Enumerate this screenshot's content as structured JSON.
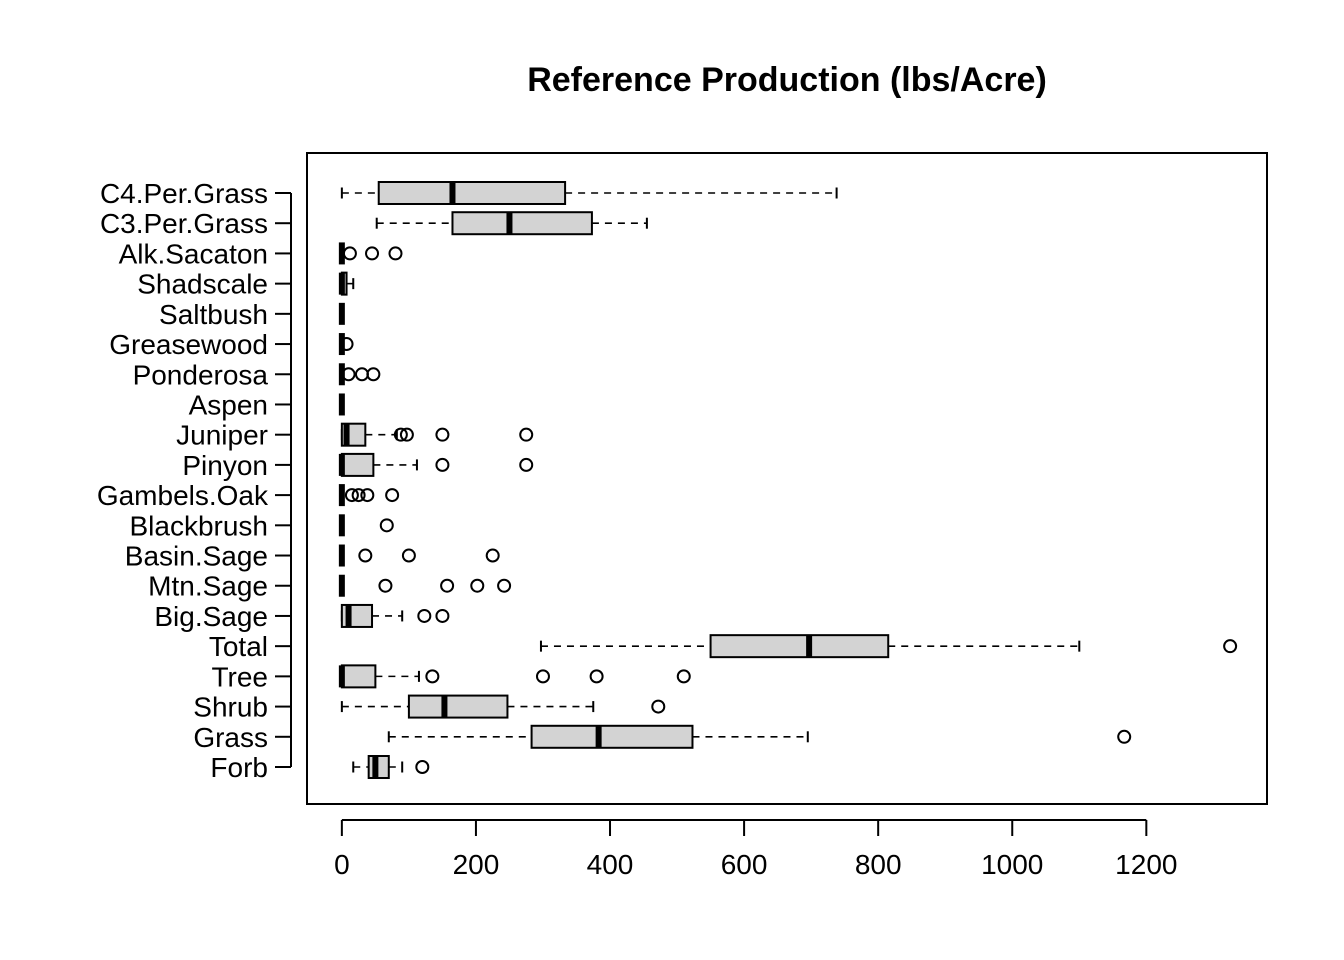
{
  "chart_data": {
    "type": "boxplot",
    "orientation": "horizontal",
    "title": "Reference Production (lbs/Acre)",
    "xlabel": "",
    "ylabel": "",
    "xlim": [
      -52,
      1380
    ],
    "xticks": [
      0,
      200,
      400,
      600,
      800,
      1000,
      1200
    ],
    "grid": false,
    "colors": {
      "box_fill": "#d3d3d3",
      "stroke": "#000000"
    },
    "categories": [
      "Forb",
      "Grass",
      "Shrub",
      "Tree",
      "Total",
      "Big.Sage",
      "Mtn.Sage",
      "Basin.Sage",
      "Blackbrush",
      "Gambels.Oak",
      "Pinyon",
      "Juniper",
      "Aspen",
      "Ponderosa",
      "Greasewood",
      "Saltbush",
      "Shadscale",
      "Alk.Sacaton",
      "C3.Per.Grass",
      "C4.Per.Grass"
    ],
    "series": [
      {
        "whisker_low": 17,
        "q1": 40,
        "median": 50,
        "q3": 70,
        "whisker_high": 90,
        "outliers": [
          120
        ]
      },
      {
        "whisker_low": 70,
        "q1": 283,
        "median": 383,
        "q3": 523,
        "whisker_high": 695,
        "outliers": [
          1167
        ]
      },
      {
        "whisker_low": 0,
        "q1": 100,
        "median": 153,
        "q3": 247,
        "whisker_high": 375,
        "outliers": [
          472
        ]
      },
      {
        "whisker_low": 0,
        "q1": 0,
        "median": 0,
        "q3": 50,
        "whisker_high": 115,
        "outliers": [
          135,
          300,
          380,
          510
        ]
      },
      {
        "whisker_low": 297,
        "q1": 550,
        "median": 697,
        "q3": 815,
        "whisker_high": 1100,
        "outliers": [
          1325
        ]
      },
      {
        "whisker_low": 0,
        "q1": 0,
        "median": 10,
        "q3": 45,
        "whisker_high": 90,
        "outliers": [
          123,
          150
        ]
      },
      {
        "whisker_low": 0,
        "q1": 0,
        "median": 0,
        "q3": 0,
        "whisker_high": 0,
        "outliers": [
          65,
          157,
          202,
          242
        ]
      },
      {
        "whisker_low": 0,
        "q1": 0,
        "median": 0,
        "q3": 0,
        "whisker_high": 0,
        "outliers": [
          35,
          100,
          225
        ]
      },
      {
        "whisker_low": 0,
        "q1": 0,
        "median": 0,
        "q3": 0,
        "whisker_high": 0,
        "outliers": [
          67
        ]
      },
      {
        "whisker_low": 0,
        "q1": 0,
        "median": 0,
        "q3": 0,
        "whisker_high": 0,
        "outliers": [
          15,
          25,
          38,
          75
        ]
      },
      {
        "whisker_low": 0,
        "q1": 0,
        "median": 0,
        "q3": 47,
        "whisker_high": 112,
        "outliers": [
          150,
          275
        ]
      },
      {
        "whisker_low": 0,
        "q1": 0,
        "median": 7,
        "q3": 35,
        "whisker_high": 82,
        "outliers": [
          88,
          97,
          150,
          275
        ]
      },
      {
        "whisker_low": 0,
        "q1": 0,
        "median": 0,
        "q3": 0,
        "whisker_high": 0,
        "outliers": []
      },
      {
        "whisker_low": 0,
        "q1": 0,
        "median": 0,
        "q3": 0,
        "whisker_high": 0,
        "outliers": [
          10,
          30,
          47
        ]
      },
      {
        "whisker_low": 0,
        "q1": 0,
        "median": 0,
        "q3": 0,
        "whisker_high": 0,
        "outliers": [
          7
        ]
      },
      {
        "whisker_low": 0,
        "q1": 0,
        "median": 0,
        "q3": 0,
        "whisker_high": 0,
        "outliers": []
      },
      {
        "whisker_low": 0,
        "q1": 0,
        "median": 0,
        "q3": 7,
        "whisker_high": 17,
        "outliers": []
      },
      {
        "whisker_low": 0,
        "q1": 0,
        "median": 0,
        "q3": 0,
        "whisker_high": 0,
        "outliers": [
          12,
          45,
          80
        ]
      },
      {
        "whisker_low": 52,
        "q1": 165,
        "median": 250,
        "q3": 373,
        "whisker_high": 455,
        "outliers": []
      },
      {
        "whisker_low": 0,
        "q1": 55,
        "median": 165,
        "q3": 333,
        "whisker_high": 738,
        "outliers": []
      }
    ]
  }
}
